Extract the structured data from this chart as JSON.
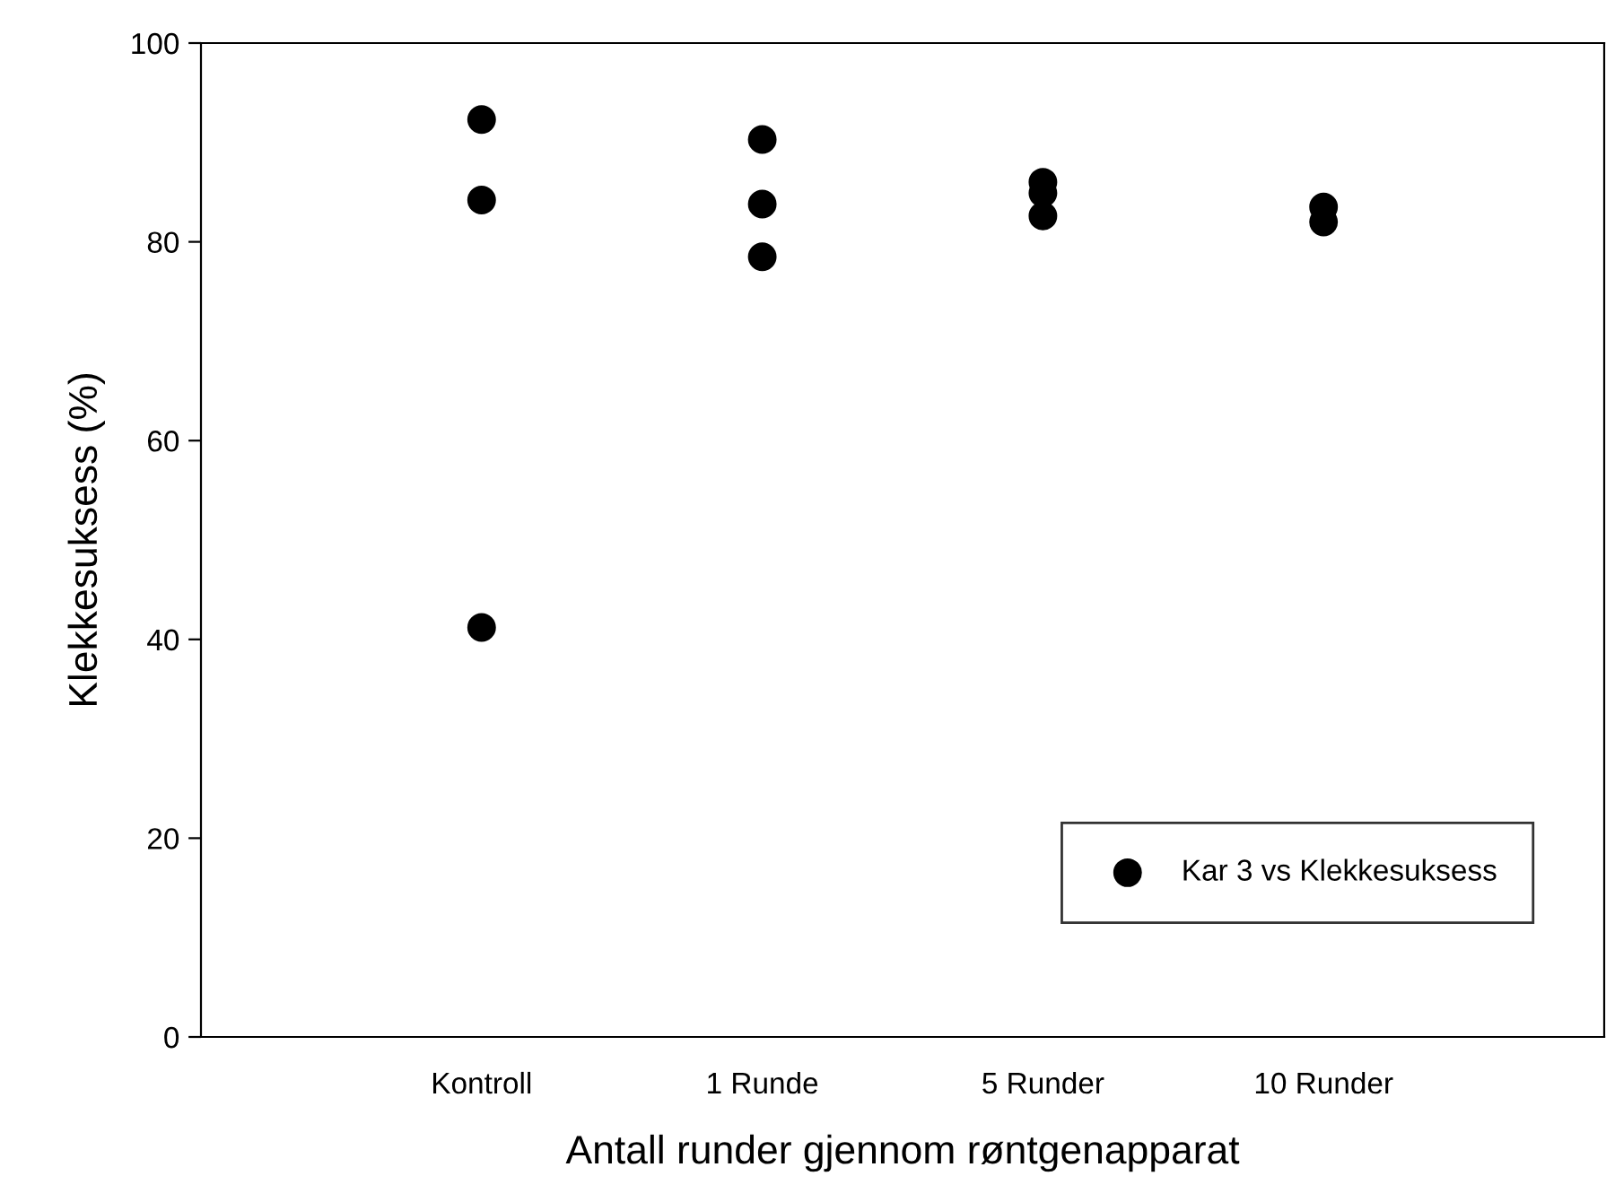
{
  "chart_data": {
    "type": "scatter",
    "xlabel": "Antall runder gjennom røntgenapparat",
    "ylabel": "Klekkesuksess (%)",
    "categories": [
      "Kontroll",
      "1 Runde",
      "5 Runder",
      "10 Runder"
    ],
    "series": [
      {
        "name": "Kar 3 vs Klekkesuksess",
        "color": "#000000",
        "x": [
          "Kontroll",
          "Kontroll",
          "Kontroll",
          "1 Runde",
          "1 Runde",
          "1 Runde",
          "5 Runder",
          "5 Runder",
          "5 Runder",
          "10 Runder",
          "10 Runder"
        ],
        "values": [
          92.3,
          84.2,
          41.2,
          90.3,
          83.8,
          78.5,
          86.0,
          84.9,
          82.6,
          83.5,
          82.0
        ]
      }
    ],
    "ylim": [
      0,
      100
    ],
    "yticks": [
      0,
      20,
      40,
      60,
      80,
      100
    ],
    "marker": "circle",
    "legend": "bottom right",
    "grid": false
  }
}
